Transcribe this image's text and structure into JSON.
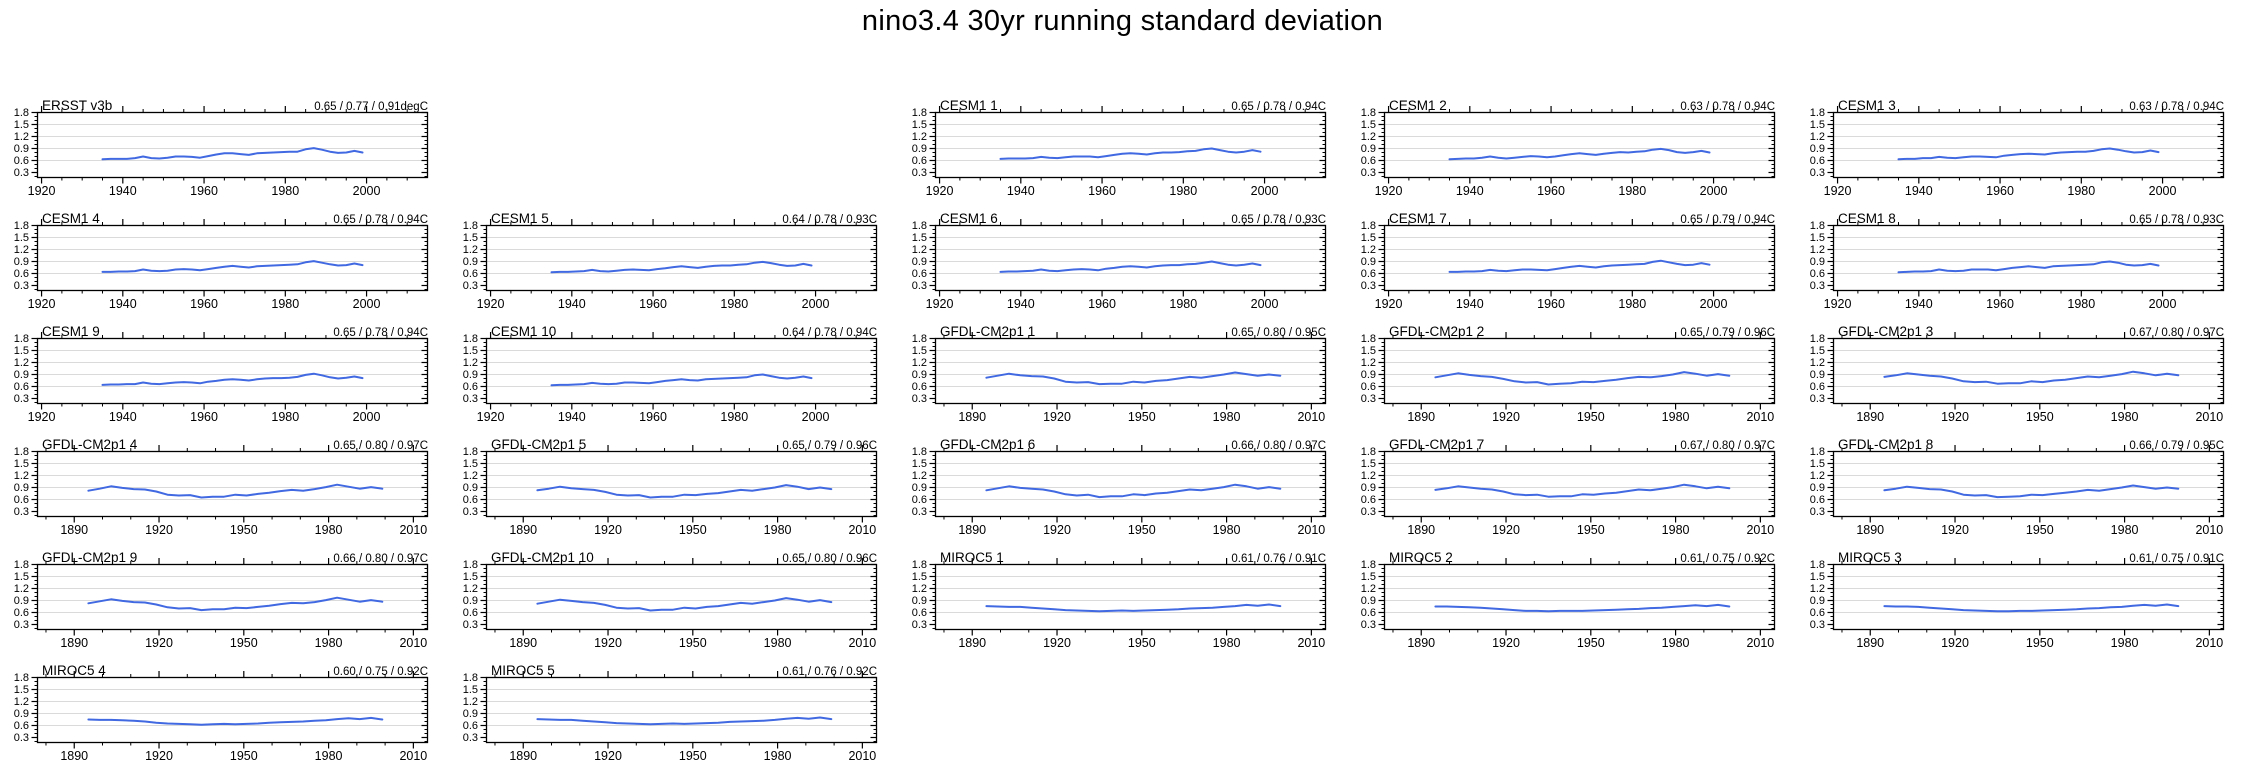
{
  "title": "nino3.4 30yr running standard deviation",
  "chart_data": {
    "type": "line",
    "title": "nino3.4 30yr running standard deviation",
    "ylim": [
      0.3,
      1.8
    ],
    "yticks": [
      0.3,
      0.6,
      0.9,
      1.2,
      1.5,
      1.8
    ],
    "gridlines": [
      0.6,
      0.9,
      1.2,
      1.5
    ],
    "grid_on": true,
    "line_color": "#4169e1",
    "gridline_color": "#dadada",
    "frame_color": "#000000",
    "layout": {
      "rows": 6,
      "cols": 5
    },
    "axes": {
      "A": {
        "xdomain": [
          1919,
          2015
        ],
        "xticks": [
          1920,
          1940,
          1960,
          1980,
          2000
        ],
        "minor_step": 5,
        "year_start": 1935,
        "year_step": 2
      },
      "B": {
        "xdomain": [
          1877,
          2015
        ],
        "xticks": [
          1890,
          1920,
          1950,
          1980,
          2010
        ],
        "minor_step": 10,
        "year_start": 1895,
        "year_step": 4
      }
    },
    "panels": [
      {
        "title": "ERSST v3b",
        "stats": "0.65 / 0.77 / 0.91degC",
        "axis": "A",
        "values": [
          0.63,
          0.64,
          0.64,
          0.64,
          0.66,
          0.7,
          0.66,
          0.65,
          0.67,
          0.7,
          0.7,
          0.69,
          0.67,
          0.71,
          0.75,
          0.78,
          0.78,
          0.76,
          0.74,
          0.78,
          0.79,
          0.8,
          0.81,
          0.82,
          0.82,
          0.88,
          0.91,
          0.87,
          0.82,
          0.79,
          0.8,
          0.84,
          0.8
        ]
      },
      null,
      {
        "title": "CESM1 1",
        "stats": "0.65 / 0.78 / 0.94C",
        "axis": "A",
        "values": [
          0.64,
          0.65,
          0.65,
          0.65,
          0.66,
          0.69,
          0.67,
          0.66,
          0.68,
          0.7,
          0.7,
          0.7,
          0.68,
          0.71,
          0.74,
          0.77,
          0.78,
          0.77,
          0.75,
          0.78,
          0.8,
          0.8,
          0.81,
          0.83,
          0.84,
          0.88,
          0.9,
          0.86,
          0.82,
          0.8,
          0.82,
          0.86,
          0.82
        ]
      },
      {
        "title": "CESM1 2",
        "stats": "0.63 / 0.78 / 0.94C",
        "axis": "A",
        "values": [
          0.63,
          0.64,
          0.65,
          0.65,
          0.67,
          0.7,
          0.67,
          0.65,
          0.67,
          0.69,
          0.71,
          0.7,
          0.68,
          0.7,
          0.73,
          0.76,
          0.78,
          0.76,
          0.74,
          0.77,
          0.79,
          0.81,
          0.8,
          0.82,
          0.83,
          0.87,
          0.89,
          0.86,
          0.81,
          0.79,
          0.81,
          0.84,
          0.8
        ]
      },
      {
        "title": "CESM1 3",
        "stats": "0.63 / 0.78 / 0.94C",
        "axis": "A",
        "values": [
          0.63,
          0.64,
          0.64,
          0.66,
          0.66,
          0.69,
          0.67,
          0.66,
          0.68,
          0.7,
          0.7,
          0.69,
          0.68,
          0.72,
          0.74,
          0.76,
          0.77,
          0.76,
          0.75,
          0.78,
          0.8,
          0.81,
          0.82,
          0.82,
          0.84,
          0.88,
          0.9,
          0.87,
          0.83,
          0.8,
          0.81,
          0.85,
          0.81
        ]
      },
      {
        "title": "CESM1 4",
        "stats": "0.65 / 0.78 / 0.94C",
        "axis": "A",
        "values": [
          0.64,
          0.64,
          0.65,
          0.65,
          0.66,
          0.7,
          0.67,
          0.66,
          0.67,
          0.7,
          0.71,
          0.7,
          0.68,
          0.71,
          0.74,
          0.77,
          0.79,
          0.77,
          0.75,
          0.78,
          0.79,
          0.8,
          0.81,
          0.82,
          0.83,
          0.88,
          0.91,
          0.87,
          0.83,
          0.8,
          0.81,
          0.85,
          0.81
        ]
      },
      {
        "title": "CESM1 5",
        "stats": "0.64 / 0.78 / 0.93C",
        "axis": "A",
        "values": [
          0.63,
          0.64,
          0.64,
          0.65,
          0.66,
          0.69,
          0.66,
          0.65,
          0.67,
          0.69,
          0.7,
          0.69,
          0.68,
          0.71,
          0.73,
          0.76,
          0.78,
          0.76,
          0.74,
          0.77,
          0.79,
          0.8,
          0.8,
          0.82,
          0.83,
          0.87,
          0.89,
          0.86,
          0.82,
          0.79,
          0.8,
          0.84,
          0.8
        ]
      },
      {
        "title": "CESM1 6",
        "stats": "0.65 / 0.78 / 0.93C",
        "axis": "A",
        "values": [
          0.64,
          0.65,
          0.65,
          0.66,
          0.67,
          0.7,
          0.67,
          0.66,
          0.68,
          0.7,
          0.71,
          0.7,
          0.68,
          0.72,
          0.74,
          0.77,
          0.78,
          0.77,
          0.75,
          0.78,
          0.8,
          0.81,
          0.81,
          0.83,
          0.84,
          0.87,
          0.9,
          0.86,
          0.82,
          0.8,
          0.82,
          0.85,
          0.81
        ]
      },
      {
        "title": "CESM1 7",
        "stats": "0.65 / 0.79 / 0.94C",
        "axis": "A",
        "values": [
          0.64,
          0.64,
          0.65,
          0.65,
          0.66,
          0.69,
          0.67,
          0.66,
          0.68,
          0.7,
          0.7,
          0.69,
          0.68,
          0.71,
          0.74,
          0.77,
          0.79,
          0.77,
          0.75,
          0.78,
          0.8,
          0.81,
          0.82,
          0.83,
          0.84,
          0.89,
          0.92,
          0.88,
          0.84,
          0.81,
          0.82,
          0.86,
          0.82
        ]
      },
      {
        "title": "CESM1 8",
        "stats": "0.65 / 0.78 / 0.93C",
        "axis": "A",
        "values": [
          0.63,
          0.64,
          0.65,
          0.65,
          0.66,
          0.7,
          0.67,
          0.66,
          0.67,
          0.7,
          0.7,
          0.7,
          0.68,
          0.71,
          0.74,
          0.76,
          0.78,
          0.76,
          0.74,
          0.78,
          0.79,
          0.8,
          0.81,
          0.82,
          0.83,
          0.88,
          0.9,
          0.87,
          0.82,
          0.8,
          0.81,
          0.84,
          0.8
        ]
      },
      {
        "title": "CESM1 9",
        "stats": "0.65 / 0.78 / 0.94C",
        "axis": "A",
        "values": [
          0.64,
          0.65,
          0.65,
          0.66,
          0.66,
          0.7,
          0.67,
          0.66,
          0.68,
          0.7,
          0.71,
          0.7,
          0.68,
          0.72,
          0.74,
          0.77,
          0.78,
          0.77,
          0.75,
          0.78,
          0.8,
          0.81,
          0.81,
          0.82,
          0.84,
          0.89,
          0.92,
          0.88,
          0.83,
          0.8,
          0.82,
          0.85,
          0.81
        ]
      },
      {
        "title": "CESM1 10",
        "stats": "0.64 / 0.78 / 0.94C",
        "axis": "A",
        "values": [
          0.63,
          0.64,
          0.64,
          0.65,
          0.66,
          0.69,
          0.67,
          0.66,
          0.67,
          0.7,
          0.7,
          0.69,
          0.68,
          0.71,
          0.74,
          0.76,
          0.78,
          0.76,
          0.75,
          0.78,
          0.79,
          0.8,
          0.81,
          0.82,
          0.83,
          0.88,
          0.9,
          0.86,
          0.82,
          0.8,
          0.82,
          0.85,
          0.81
        ]
      },
      {
        "title": "GFDL-CM2p1 1",
        "stats": "0.65 / 0.80 / 0.95C",
        "axis": "B",
        "values": [
          0.82,
          0.87,
          0.92,
          0.88,
          0.86,
          0.85,
          0.8,
          0.72,
          0.7,
          0.71,
          0.66,
          0.67,
          0.67,
          0.72,
          0.7,
          0.74,
          0.76,
          0.8,
          0.84,
          0.82,
          0.86,
          0.9,
          0.95,
          0.91,
          0.87,
          0.9,
          0.87
        ]
      },
      {
        "title": "GFDL-CM2p1 2",
        "stats": "0.65 / 0.79 / 0.96C",
        "axis": "B",
        "values": [
          0.83,
          0.88,
          0.93,
          0.89,
          0.86,
          0.84,
          0.79,
          0.73,
          0.7,
          0.71,
          0.65,
          0.67,
          0.68,
          0.72,
          0.71,
          0.74,
          0.77,
          0.81,
          0.84,
          0.83,
          0.86,
          0.9,
          0.96,
          0.92,
          0.87,
          0.91,
          0.87
        ]
      },
      {
        "title": "GFDL-CM2p1 3",
        "stats": "0.67 / 0.80 / 0.97C",
        "axis": "B",
        "values": [
          0.84,
          0.88,
          0.93,
          0.9,
          0.87,
          0.85,
          0.8,
          0.73,
          0.71,
          0.72,
          0.67,
          0.68,
          0.68,
          0.73,
          0.71,
          0.75,
          0.77,
          0.81,
          0.85,
          0.83,
          0.87,
          0.91,
          0.97,
          0.93,
          0.88,
          0.92,
          0.88
        ]
      },
      {
        "title": "GFDL-CM2p1 4",
        "stats": "0.65 / 0.80 / 0.97C",
        "axis": "B",
        "values": [
          0.82,
          0.87,
          0.93,
          0.89,
          0.86,
          0.85,
          0.8,
          0.72,
          0.7,
          0.71,
          0.65,
          0.67,
          0.67,
          0.72,
          0.7,
          0.74,
          0.77,
          0.81,
          0.84,
          0.82,
          0.86,
          0.91,
          0.97,
          0.92,
          0.87,
          0.91,
          0.87
        ]
      },
      {
        "title": "GFDL-CM2p1 5",
        "stats": "0.65 / 0.79 / 0.96C",
        "axis": "B",
        "values": [
          0.83,
          0.87,
          0.92,
          0.88,
          0.86,
          0.84,
          0.79,
          0.72,
          0.7,
          0.71,
          0.65,
          0.67,
          0.67,
          0.72,
          0.71,
          0.74,
          0.76,
          0.8,
          0.84,
          0.82,
          0.86,
          0.9,
          0.96,
          0.92,
          0.86,
          0.9,
          0.86
        ]
      },
      {
        "title": "GFDL-CM2p1 6",
        "stats": "0.66 / 0.80 / 0.97C",
        "axis": "B",
        "values": [
          0.83,
          0.88,
          0.93,
          0.89,
          0.87,
          0.85,
          0.8,
          0.73,
          0.7,
          0.72,
          0.66,
          0.68,
          0.68,
          0.73,
          0.71,
          0.75,
          0.77,
          0.81,
          0.85,
          0.83,
          0.87,
          0.91,
          0.97,
          0.93,
          0.87,
          0.91,
          0.87
        ]
      },
      {
        "title": "GFDL-CM2p1 7",
        "stats": "0.67 / 0.80 / 0.97C",
        "axis": "B",
        "values": [
          0.84,
          0.88,
          0.93,
          0.9,
          0.87,
          0.85,
          0.8,
          0.73,
          0.71,
          0.72,
          0.67,
          0.68,
          0.68,
          0.73,
          0.72,
          0.75,
          0.77,
          0.81,
          0.85,
          0.83,
          0.87,
          0.91,
          0.97,
          0.93,
          0.88,
          0.92,
          0.88
        ]
      },
      {
        "title": "GFDL-CM2p1 8",
        "stats": "0.66 / 0.79 / 0.95C",
        "axis": "B",
        "values": [
          0.83,
          0.87,
          0.92,
          0.89,
          0.86,
          0.85,
          0.8,
          0.72,
          0.7,
          0.71,
          0.66,
          0.67,
          0.68,
          0.72,
          0.71,
          0.74,
          0.77,
          0.8,
          0.84,
          0.82,
          0.86,
          0.9,
          0.95,
          0.91,
          0.87,
          0.9,
          0.87
        ]
      },
      {
        "title": "GFDL-CM2p1 9",
        "stats": "0.66 / 0.80 / 0.97C",
        "axis": "B",
        "values": [
          0.83,
          0.88,
          0.93,
          0.89,
          0.86,
          0.85,
          0.8,
          0.73,
          0.7,
          0.71,
          0.66,
          0.68,
          0.68,
          0.72,
          0.71,
          0.74,
          0.77,
          0.81,
          0.84,
          0.83,
          0.86,
          0.91,
          0.97,
          0.92,
          0.87,
          0.91,
          0.87
        ]
      },
      {
        "title": "GFDL-CM2p1 10",
        "stats": "0.65 / 0.80 / 0.96C",
        "axis": "B",
        "values": [
          0.82,
          0.87,
          0.92,
          0.89,
          0.86,
          0.84,
          0.79,
          0.72,
          0.7,
          0.71,
          0.65,
          0.67,
          0.67,
          0.72,
          0.7,
          0.74,
          0.76,
          0.8,
          0.84,
          0.82,
          0.86,
          0.9,
          0.96,
          0.92,
          0.87,
          0.91,
          0.86
        ]
      },
      {
        "title": "MIROC5 1",
        "stats": "0.61 / 0.76 / 0.91C",
        "axis": "B",
        "values": [
          0.76,
          0.75,
          0.74,
          0.74,
          0.72,
          0.7,
          0.68,
          0.66,
          0.65,
          0.64,
          0.63,
          0.64,
          0.65,
          0.64,
          0.65,
          0.66,
          0.67,
          0.68,
          0.7,
          0.71,
          0.72,
          0.74,
          0.76,
          0.79,
          0.77,
          0.8,
          0.76
        ]
      },
      {
        "title": "MIROC5 2",
        "stats": "0.61 / 0.75 / 0.92C",
        "axis": "B",
        "values": [
          0.75,
          0.75,
          0.74,
          0.73,
          0.72,
          0.7,
          0.68,
          0.66,
          0.64,
          0.64,
          0.63,
          0.64,
          0.64,
          0.64,
          0.65,
          0.66,
          0.67,
          0.68,
          0.69,
          0.71,
          0.72,
          0.74,
          0.76,
          0.78,
          0.76,
          0.79,
          0.75
        ]
      },
      {
        "title": "MIROC5 3",
        "stats": "0.61 / 0.75 / 0.91C",
        "axis": "B",
        "values": [
          0.76,
          0.75,
          0.75,
          0.74,
          0.72,
          0.7,
          0.68,
          0.66,
          0.65,
          0.64,
          0.63,
          0.63,
          0.64,
          0.64,
          0.65,
          0.66,
          0.67,
          0.68,
          0.7,
          0.71,
          0.73,
          0.74,
          0.77,
          0.79,
          0.77,
          0.8,
          0.76
        ]
      },
      {
        "title": "MIROC5 4",
        "stats": "0.60 / 0.75 / 0.92C",
        "axis": "B",
        "values": [
          0.75,
          0.74,
          0.74,
          0.73,
          0.72,
          0.7,
          0.67,
          0.65,
          0.64,
          0.63,
          0.62,
          0.63,
          0.64,
          0.63,
          0.64,
          0.65,
          0.67,
          0.68,
          0.69,
          0.7,
          0.72,
          0.73,
          0.76,
          0.78,
          0.76,
          0.79,
          0.75
        ]
      },
      {
        "title": "MIROC5 5",
        "stats": "0.61 / 0.76 / 0.92C",
        "axis": "B",
        "values": [
          0.76,
          0.75,
          0.74,
          0.74,
          0.72,
          0.7,
          0.68,
          0.66,
          0.65,
          0.64,
          0.63,
          0.64,
          0.65,
          0.64,
          0.65,
          0.66,
          0.67,
          0.69,
          0.7,
          0.71,
          0.72,
          0.74,
          0.77,
          0.79,
          0.77,
          0.8,
          0.76
        ]
      },
      null,
      null,
      null
    ]
  }
}
